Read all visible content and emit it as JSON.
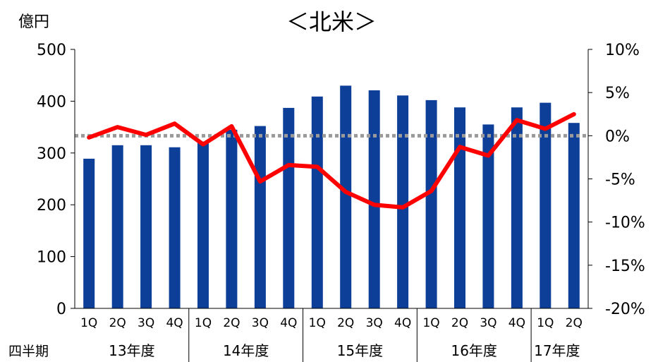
{
  "chart_data": {
    "type": "bar",
    "title": "＜北米＞",
    "ylabel_left": "億円",
    "xlabel": "四半期",
    "left_axis": {
      "ylim": [
        0,
        500
      ],
      "ticks": [
        "0",
        "100",
        "200",
        "300",
        "400",
        "500"
      ]
    },
    "right_axis": {
      "ylim": [
        -20,
        10
      ],
      "ticks": [
        "-20%",
        "-15%",
        "-10%",
        "-5%",
        "0%",
        "5%",
        "10%"
      ]
    },
    "categories": [
      "1Q",
      "2Q",
      "3Q",
      "4Q",
      "1Q",
      "2Q",
      "3Q",
      "4Q",
      "1Q",
      "2Q",
      "3Q",
      "4Q",
      "1Q",
      "2Q",
      "3Q",
      "4Q",
      "1Q",
      "2Q"
    ],
    "groups": [
      {
        "label": "13年度",
        "count": 4
      },
      {
        "label": "14年度",
        "count": 4
      },
      {
        "label": "15年度",
        "count": 4
      },
      {
        "label": "16年度",
        "count": 4
      },
      {
        "label": "17年度",
        "count": 2
      }
    ],
    "series": [
      {
        "type": "bar",
        "axis": "left",
        "color": "#0d3f99",
        "values": [
          289,
          315,
          315,
          311,
          322,
          345,
          352,
          387,
          409,
          430,
          421,
          411,
          402,
          388,
          355,
          388,
          397,
          358
        ]
      },
      {
        "type": "line",
        "axis": "right",
        "color": "#ff0000",
        "values": [
          -0.2,
          1.0,
          0.1,
          1.4,
          -1.0,
          1.1,
          -5.3,
          -3.4,
          -3.6,
          -6.5,
          -8.0,
          -8.3,
          -6.4,
          -1.3,
          -2.3,
          1.8,
          0.8,
          2.5
        ]
      }
    ],
    "reference_line": {
      "value": 0,
      "axis": "right",
      "style": "dotted",
      "color": "#9a9a9a"
    }
  }
}
